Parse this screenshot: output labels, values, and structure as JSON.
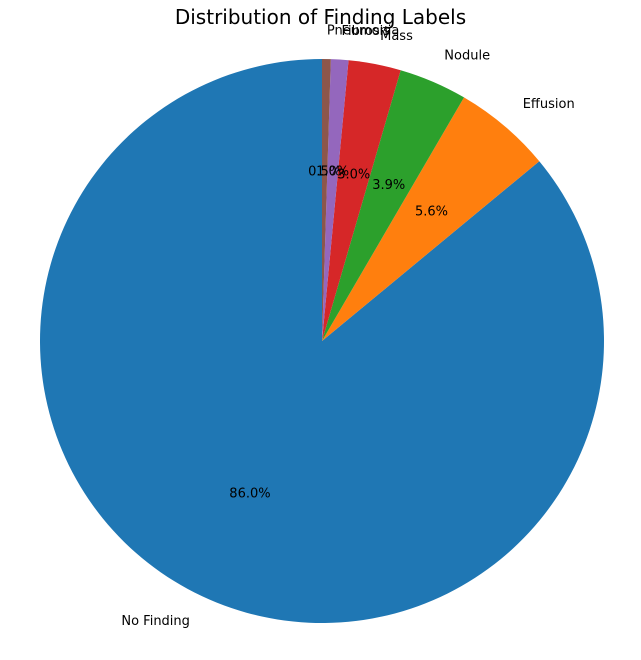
{
  "chart_data": {
    "type": "pie",
    "title": "Distribution of Finding Labels",
    "start_angle_deg": 90,
    "direction": "counterclockwise",
    "slices": [
      {
        "label": "No Finding",
        "value": 86.0,
        "pct_label": "86.0%",
        "color": "#1f77b4"
      },
      {
        "label": "Effusion",
        "value": 5.6,
        "pct_label": "5.6%",
        "color": "#ff7f0e"
      },
      {
        "label": "Nodule",
        "value": 3.9,
        "pct_label": "3.9%",
        "color": "#2ca02c"
      },
      {
        "label": "Mass",
        "value": 3.0,
        "pct_label": "3.0%",
        "color": "#d62728"
      },
      {
        "label": "Fibrosis",
        "value": 1.0,
        "pct_label": "1.0%",
        "color": "#9467bd"
      },
      {
        "label": "Pneumonia",
        "value": 0.5,
        "pct_label": "0.5%",
        "color": "#8c564b"
      }
    ]
  }
}
